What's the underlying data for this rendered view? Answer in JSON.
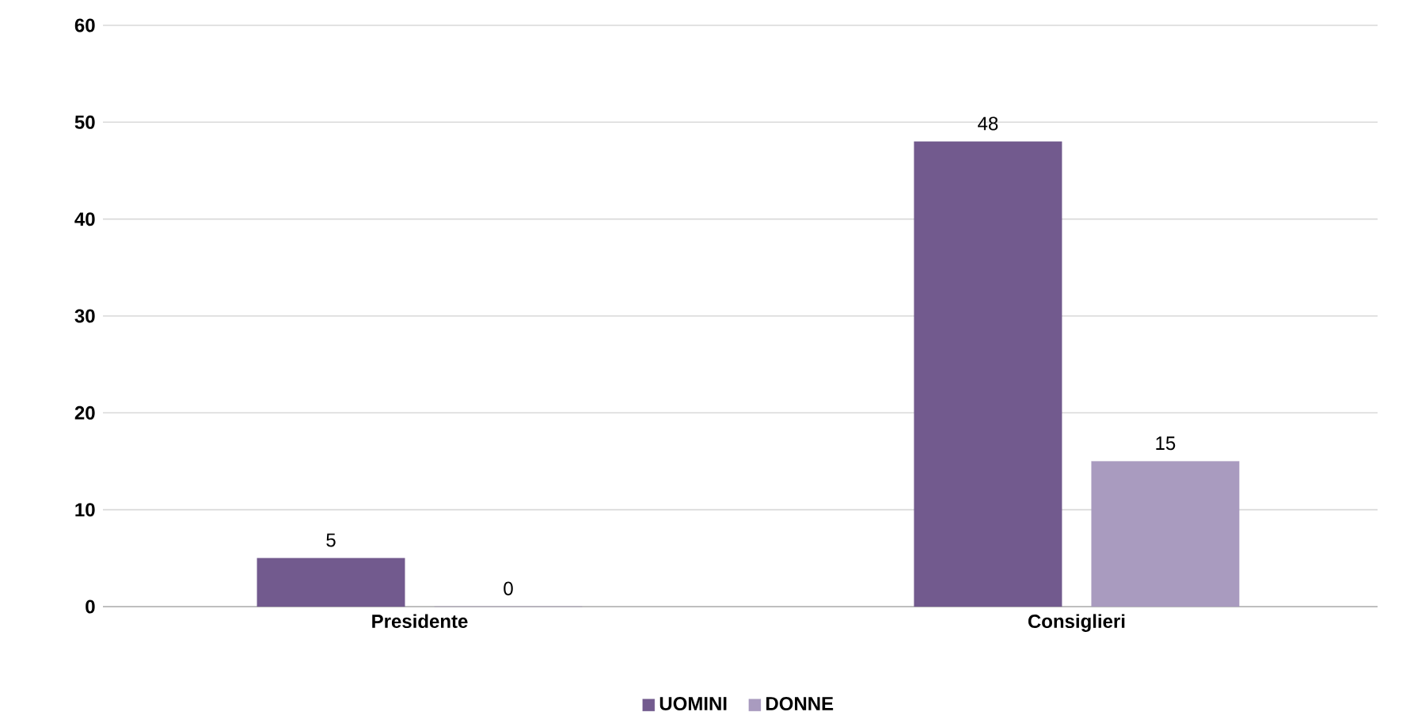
{
  "chart_data": {
    "type": "bar",
    "categories": [
      "Presidente",
      "Consiglieri"
    ],
    "series": [
      {
        "name": "UOMINI",
        "color": "#725a8e",
        "values": [
          5,
          48
        ]
      },
      {
        "name": "DONNE",
        "color": "#a99bbf",
        "values": [
          0,
          15
        ]
      }
    ],
    "ylim": [
      0,
      60
    ],
    "yticks": [
      0,
      10,
      20,
      30,
      40,
      50,
      60
    ],
    "grid": "y",
    "legend": "bottom",
    "data_labels": true
  }
}
